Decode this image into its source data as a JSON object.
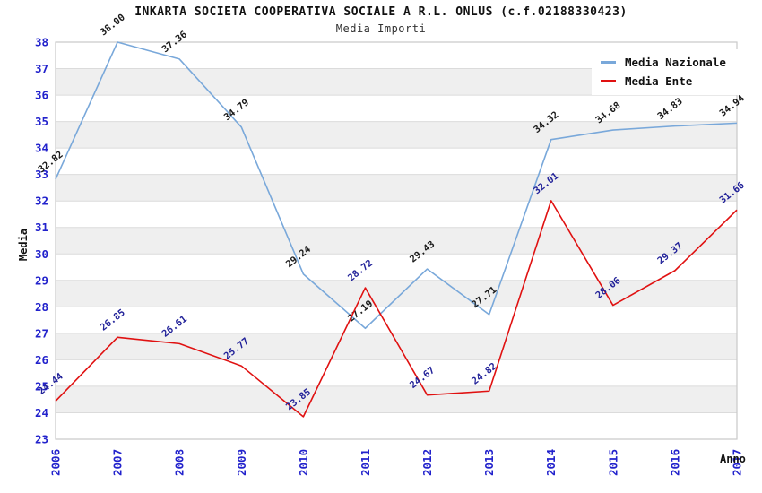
{
  "chart_data": {
    "type": "line",
    "title": "INKARTA SOCIETA COOPERATIVA SOCIALE A R.L. ONLUS (c.f.02188330423)",
    "subtitle": "Media Importi",
    "xlabel": "Anno",
    "ylabel": "Media",
    "x": [
      "2006",
      "2007",
      "2008",
      "2009",
      "2010",
      "2011",
      "2012",
      "2013",
      "2014",
      "2015",
      "2016",
      "2017"
    ],
    "ylim": [
      23,
      38
    ],
    "ytick_step": 1,
    "grid": true,
    "legend_position": "top-right",
    "series": [
      {
        "name": "Media Nazionale",
        "color": "#79A8DA",
        "label_color": "#1a1a1a",
        "values": [
          32.82,
          38.0,
          37.36,
          34.79,
          29.24,
          27.19,
          29.43,
          27.71,
          34.32,
          34.68,
          34.83,
          34.94
        ]
      },
      {
        "name": "Media Ente",
        "color": "#E01111",
        "label_color": "#222299",
        "values": [
          24.44,
          26.85,
          26.61,
          25.77,
          23.85,
          28.72,
          24.67,
          24.82,
          32.01,
          28.06,
          29.37,
          31.66
        ]
      }
    ],
    "style": {
      "band_color": "#EFEFEF",
      "grid_color": "#DBDBDB",
      "border_color": "#C9C9C9",
      "tick_label_color": "#2222CC"
    }
  }
}
